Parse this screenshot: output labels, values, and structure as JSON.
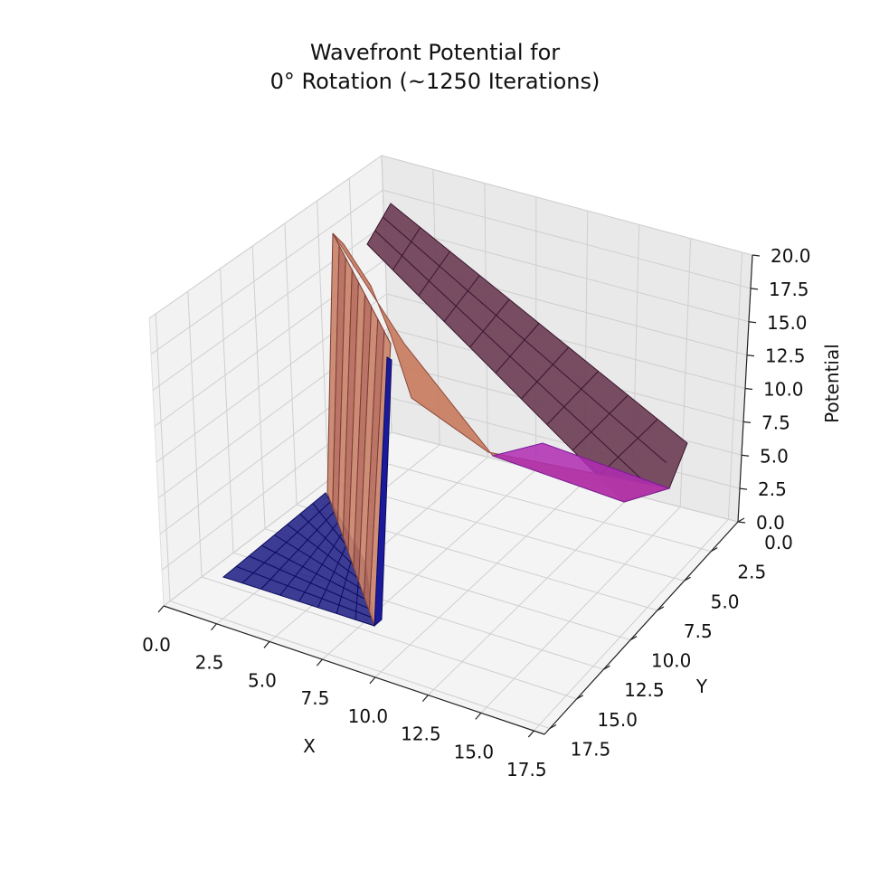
{
  "chart_data": {
    "type": "surface3d",
    "title": [
      "Wavefront Potential for",
      "0° Rotation (~1250 Iterations)"
    ],
    "xlabel": "X",
    "ylabel": "Y",
    "zlabel": "Potential",
    "xlim": [
      0,
      18
    ],
    "ylim": [
      0,
      18
    ],
    "zlim": [
      0,
      20
    ],
    "x_ticks": [
      "0.0",
      "2.5",
      "5.0",
      "7.5",
      "10.0",
      "12.5",
      "15.0",
      "17.5"
    ],
    "y_ticks": [
      "0.0",
      "2.5",
      "5.0",
      "7.5",
      "10.0",
      "12.5",
      "15.0",
      "17.5"
    ],
    "z_ticks": [
      "0.0",
      "2.5",
      "5.0",
      "7.5",
      "10.0",
      "12.5",
      "15.0",
      "17.5",
      "20.0"
    ],
    "colormap": "plasma",
    "grid": true,
    "surface": {
      "floor_region": {
        "x": [
          0,
          9
        ],
        "y": [
          9,
          17
        ],
        "z": 0
      },
      "obstacle_wall": {
        "x": [
          8,
          9
        ],
        "y": [
          0,
          17
        ],
        "z_max": 20
      },
      "ridge": {
        "x": [
          9,
          17
        ],
        "y": [
          0,
          9
        ],
        "z_start": 20,
        "z_end": 4
      },
      "goal": {
        "x": 17,
        "y": 9,
        "z": 0
      }
    }
  }
}
